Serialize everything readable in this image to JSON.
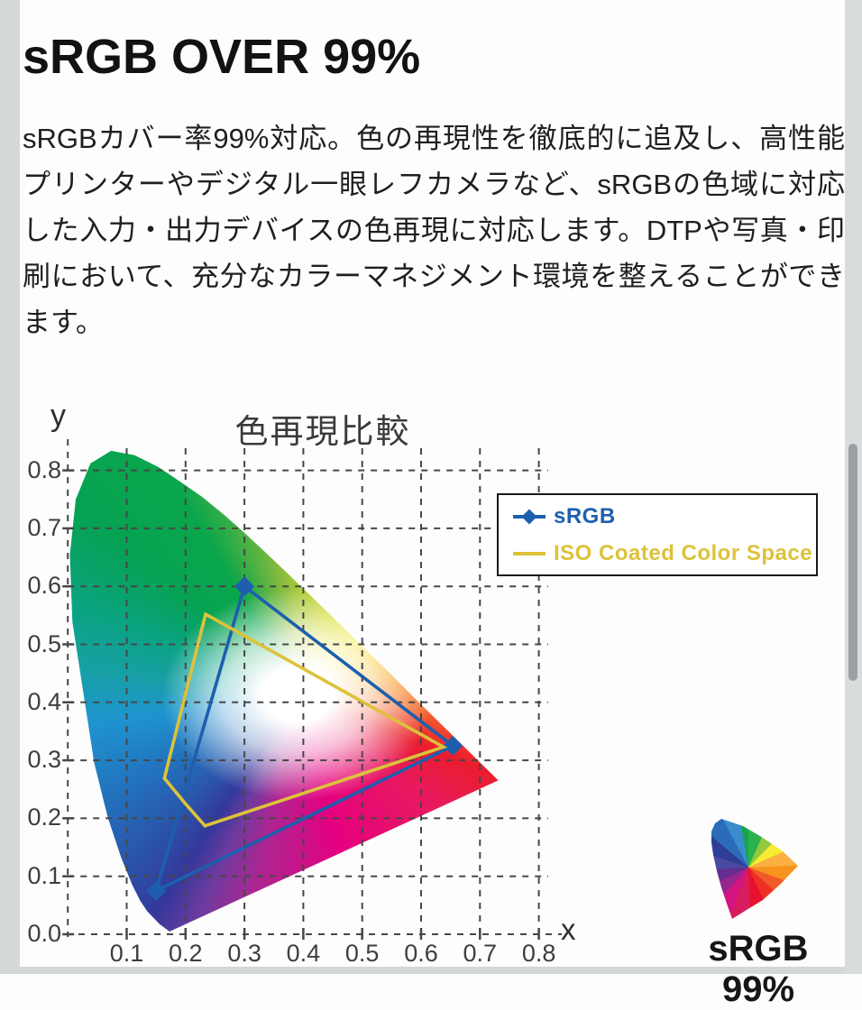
{
  "page": {
    "title": "sRGB OVER 99%",
    "body_text": "sRGBカバー率99%対応。色の再現性を徹底的に追及し、高性能プリンターやデジタル一眼レフカメラなど、sRGBの色域に対応した入力・出力デバイスの色再現に対応します。DTPや写真・印刷において、充分なカラーマネジメント環境を整えることができます。",
    "badge_label": "sRGB 99%"
  },
  "chart_data": {
    "type": "line",
    "title": "色再現比較",
    "xlabel": "x",
    "ylabel": "y",
    "xlim": [
      0,
      0.85
    ],
    "ylim": [
      0,
      0.85
    ],
    "x_ticks": [
      0.1,
      0.2,
      0.3,
      0.4,
      0.5,
      0.6,
      0.7,
      0.8
    ],
    "y_ticks": [
      0,
      0.1,
      0.2,
      0.3,
      0.4,
      0.5,
      0.6,
      0.7,
      0.8
    ],
    "grid": "dashed",
    "legend_position": "upper right",
    "background_note": "CIE 1931 xy chromaticity horseshoe (spectral locus) filled with spectrum colors, white point in the middle",
    "series": [
      {
        "name": "sRGB",
        "color": "#1d5fae",
        "marker": "diamond",
        "closed": true,
        "points": [
          [
            0.3,
            0.6
          ],
          [
            0.654,
            0.325
          ],
          [
            0.15,
            0.075
          ]
        ]
      },
      {
        "name": "ISO Coated Color Space",
        "color": "#ddc23a",
        "marker": "none",
        "closed": true,
        "points": [
          [
            0.234,
            0.552
          ],
          [
            0.164,
            0.269
          ],
          [
            0.199,
            0.226
          ],
          [
            0.233,
            0.187
          ],
          [
            0.638,
            0.323
          ]
        ]
      }
    ]
  }
}
